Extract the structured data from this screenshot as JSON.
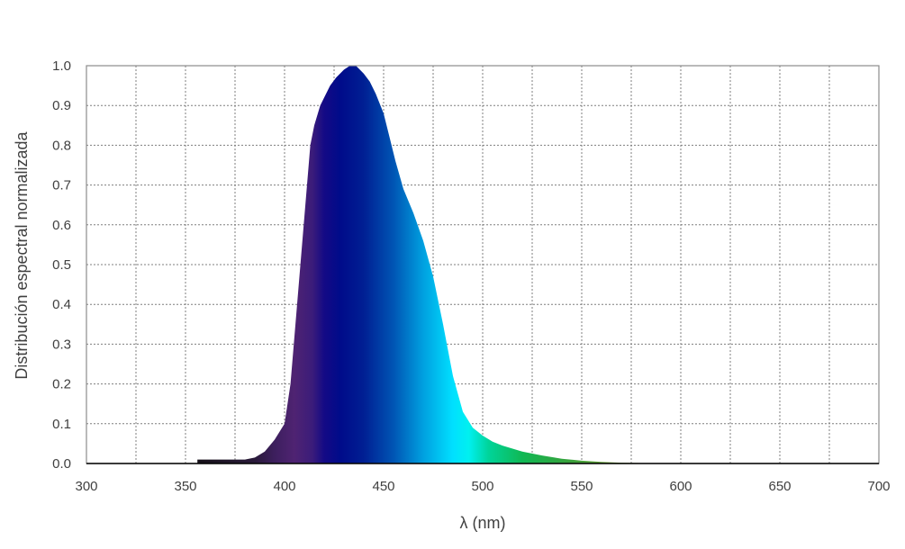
{
  "chart_data": {
    "type": "area",
    "title": "",
    "xlabel": "λ (nm)",
    "ylabel": "Distribución espectral normalizada",
    "xlim": [
      300,
      700
    ],
    "ylim": [
      0,
      1.0
    ],
    "x_ticks": [
      "300",
      "350",
      "400",
      "450",
      "500",
      "550",
      "600",
      "650",
      "700"
    ],
    "y_ticks": [
      "0.0",
      "0.1",
      "0.2",
      "0.3",
      "0.4",
      "0.5",
      "0.6",
      "0.7",
      "0.8",
      "0.9",
      "1.0"
    ],
    "grid": true,
    "legend": "none",
    "fill": "spectral wavelength colors",
    "series": [
      {
        "x": [
          356,
          360,
          370,
          380,
          385,
          390,
          395,
          400,
          403,
          406,
          410,
          413,
          415,
          418,
          420,
          423,
          426,
          430,
          433,
          436,
          438,
          440,
          443,
          446,
          450,
          453,
          456,
          460,
          465,
          470,
          475,
          480,
          485,
          490,
          495,
          500,
          505,
          510,
          520,
          530,
          540,
          550,
          560,
          570,
          580,
          600,
          650,
          700
        ],
        "y": [
          0.01,
          0.01,
          0.01,
          0.01,
          0.015,
          0.03,
          0.06,
          0.1,
          0.2,
          0.38,
          0.62,
          0.8,
          0.85,
          0.9,
          0.92,
          0.95,
          0.97,
          0.99,
          1.0,
          1.0,
          0.99,
          0.98,
          0.96,
          0.93,
          0.88,
          0.82,
          0.76,
          0.69,
          0.63,
          0.56,
          0.47,
          0.35,
          0.22,
          0.13,
          0.09,
          0.07,
          0.055,
          0.045,
          0.03,
          0.02,
          0.012,
          0.007,
          0.004,
          0.002,
          0.001,
          0.0,
          0.0,
          0.0
        ]
      }
    ]
  }
}
